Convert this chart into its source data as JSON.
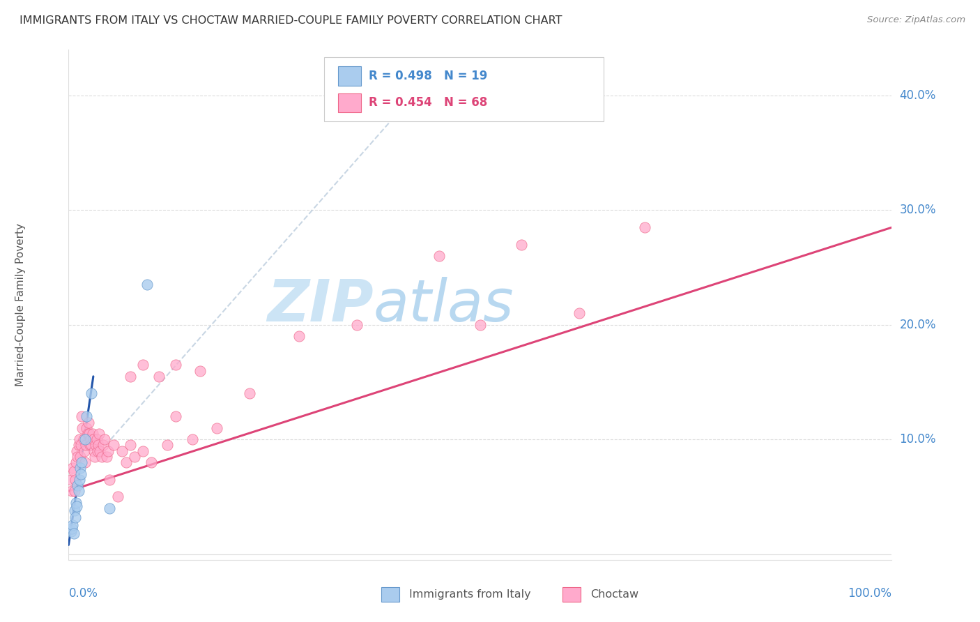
{
  "title": "IMMIGRANTS FROM ITALY VS CHOCTAW MARRIED-COUPLE FAMILY POVERTY CORRELATION CHART",
  "source": "Source: ZipAtlas.com",
  "ylabel": "Married-Couple Family Poverty",
  "xlim": [
    0.0,
    1.0
  ],
  "ylim": [
    -0.005,
    0.44
  ],
  "blue_scatter_x": [
    0.003,
    0.004,
    0.005,
    0.006,
    0.007,
    0.008,
    0.009,
    0.01,
    0.011,
    0.012,
    0.013,
    0.014,
    0.015,
    0.016,
    0.02,
    0.022,
    0.028,
    0.05,
    0.095
  ],
  "blue_scatter_y": [
    0.02,
    0.022,
    0.025,
    0.018,
    0.038,
    0.032,
    0.045,
    0.042,
    0.06,
    0.055,
    0.065,
    0.075,
    0.07,
    0.08,
    0.1,
    0.12,
    0.14,
    0.04,
    0.235
  ],
  "pink_scatter_x": [
    0.003,
    0.004,
    0.005,
    0.006,
    0.007,
    0.008,
    0.009,
    0.01,
    0.011,
    0.012,
    0.013,
    0.014,
    0.015,
    0.016,
    0.017,
    0.018,
    0.019,
    0.02,
    0.021,
    0.022,
    0.023,
    0.024,
    0.025,
    0.026,
    0.027,
    0.028,
    0.029,
    0.03,
    0.031,
    0.032,
    0.033,
    0.034,
    0.035,
    0.036,
    0.037,
    0.038,
    0.04,
    0.042,
    0.044,
    0.046,
    0.048,
    0.05,
    0.055,
    0.06,
    0.065,
    0.07,
    0.075,
    0.08,
    0.09,
    0.1,
    0.12,
    0.13,
    0.15,
    0.18,
    0.22,
    0.28,
    0.35,
    0.45,
    0.5,
    0.55,
    0.62,
    0.7,
    0.075,
    0.09,
    0.11,
    0.13,
    0.16
  ],
  "pink_scatter_y": [
    0.065,
    0.055,
    0.075,
    0.072,
    0.055,
    0.065,
    0.08,
    0.09,
    0.085,
    0.095,
    0.1,
    0.085,
    0.095,
    0.12,
    0.11,
    0.1,
    0.09,
    0.08,
    0.095,
    0.11,
    0.105,
    0.115,
    0.105,
    0.095,
    0.1,
    0.095,
    0.105,
    0.1,
    0.09,
    0.085,
    0.095,
    0.1,
    0.09,
    0.095,
    0.105,
    0.09,
    0.085,
    0.095,
    0.1,
    0.085,
    0.09,
    0.065,
    0.095,
    0.05,
    0.09,
    0.08,
    0.095,
    0.085,
    0.09,
    0.08,
    0.095,
    0.12,
    0.1,
    0.11,
    0.14,
    0.19,
    0.2,
    0.26,
    0.2,
    0.27,
    0.21,
    0.285,
    0.155,
    0.165,
    0.155,
    0.165,
    0.16
  ],
  "blue_line_x": [
    0.0,
    0.03
  ],
  "blue_line_y": [
    0.008,
    0.155
  ],
  "pink_line_x": [
    0.0,
    1.0
  ],
  "pink_line_y": [
    0.055,
    0.285
  ],
  "dashed_line_x": [
    0.045,
    0.4
  ],
  "dashed_line_y": [
    0.095,
    0.385
  ],
  "ytick_values": [
    0.0,
    0.1,
    0.2,
    0.3,
    0.4
  ],
  "ytick_labels": [
    "",
    "10.0%",
    "20.0%",
    "30.0%",
    "40.0%"
  ],
  "blue_fill": "#aaccee",
  "blue_edge": "#6699cc",
  "pink_fill": "#ffaacc",
  "pink_edge": "#ee6688",
  "blue_line_color": "#2255aa",
  "pink_line_color": "#dd4477",
  "dashed_color": "#bbccdd",
  "grid_color": "#dddddd",
  "axis_color": "#dddddd",
  "title_color": "#333333",
  "label_color": "#4488cc",
  "source_color": "#888888",
  "ylabel_color": "#555555",
  "legend_text_blue": "#4488cc",
  "legend_text_pink": "#dd4477"
}
